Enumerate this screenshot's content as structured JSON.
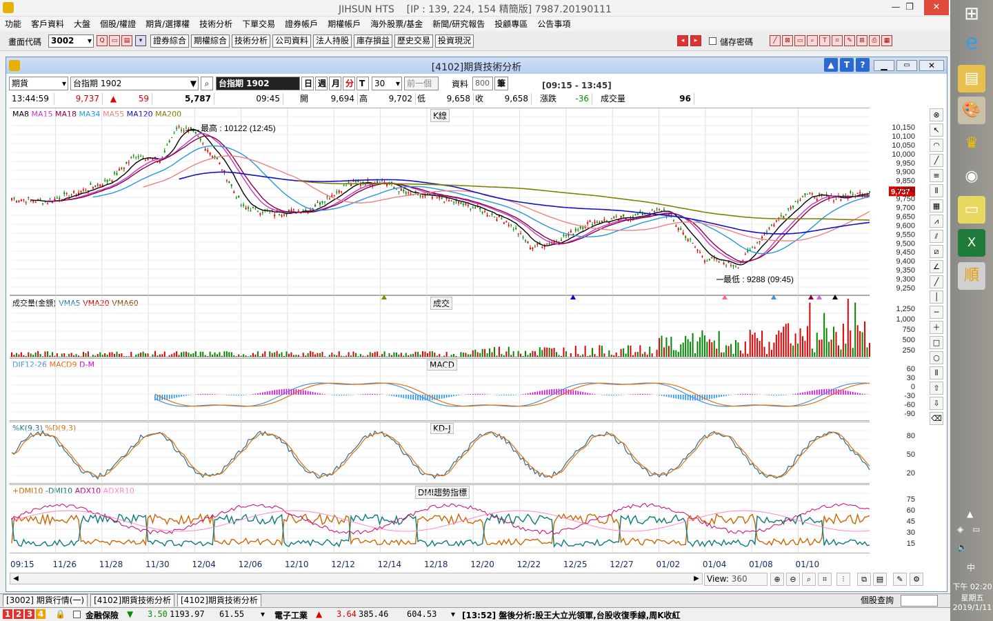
{
  "window": {
    "title": "JIHSUN HTS",
    "ip": "[IP : 139, 224, 154 精簡版] 7987.20190111"
  },
  "menu": [
    "功能",
    "客戶資料",
    "大盤",
    "個股/權證",
    "期貨/選擇權",
    "技術分析",
    "下單交易",
    "證券帳戶",
    "期權帳戶",
    "海外股票/基金",
    "新聞/研究報告",
    "投顧專區",
    "公告事項"
  ],
  "toolbar": {
    "code_label": "畫面代碼",
    "code_value": "3002",
    "buttons": [
      "證券綜合",
      "期權綜合",
      "技術分析",
      "公司資料",
      "法人持股",
      "庫存損益",
      "歷史交易",
      "投資現況"
    ],
    "save_pwd": "儲存密碼"
  },
  "child": {
    "title": "[4102]期貨技術分析"
  },
  "controls": {
    "type": "期貨",
    "product": "台指期 1902",
    "product_display": "台指期 1902",
    "periods": [
      "日",
      "週",
      "月",
      "分",
      "T"
    ],
    "interval": "30",
    "prev": "前一個",
    "data_label": "資料",
    "data_count": "800",
    "unit": "筆",
    "session": "[09:15 - 13:45]"
  },
  "quote": {
    "time": "13:44:59",
    "price": "9,737",
    "change": "59",
    "volume": "5,787",
    "bar_time": "09:45",
    "open_label": "開",
    "open": "9,694",
    "high_label": "高",
    "high": "9,702",
    "low_label": "低",
    "low": "9,658",
    "close_label": "收",
    "close": "9,658",
    "chg_label": "漲跌",
    "chg": "-36",
    "vol_label": "成交量",
    "vol": "96"
  },
  "panels": {
    "k": {
      "title": "K線",
      "legend": [
        {
          "t": "MA8",
          "c": "#000000"
        },
        {
          "t": "MA15",
          "c": "#cc33cc"
        },
        {
          "t": "MA18",
          "c": "#880044"
        },
        {
          "t": "MA34",
          "c": "#2299dd"
        },
        {
          "t": "MA55",
          "c": "#f08080"
        },
        {
          "t": "MA120",
          "c": "#1010cc"
        },
        {
          "t": "MA200",
          "c": "#808000"
        }
      ],
      "yticks": [
        "10,150",
        "10,100",
        "10,050",
        "10,000",
        "9,950",
        "9,900",
        "9,850",
        "9,800",
        "9,750",
        "9,700",
        "9,650",
        "9,600",
        "9,550",
        "9,500",
        "9,450",
        "9,400",
        "9,350",
        "9,300",
        "9,250"
      ],
      "high_note": "最高 : 10122 (12:45)",
      "low_note": "最低 : 9288 (09:45)",
      "last": "9,737"
    },
    "vol": {
      "title": "成交",
      "legend": [
        {
          "t": "成交量(金額)",
          "c": "#000000"
        },
        {
          "t": "VMA5",
          "c": "#1f77b4"
        },
        {
          "t": "VMA20",
          "c": "#cc0000"
        },
        {
          "t": "VMA60",
          "c": "#884400"
        }
      ],
      "yticks": [
        "1,250",
        "1,000",
        "750",
        "500",
        "250"
      ]
    },
    "macd": {
      "title": "MACD",
      "legend": [
        {
          "t": "DIF12-26",
          "c": "#4a90d9"
        },
        {
          "t": "MACD9",
          "c": "#e07010"
        },
        {
          "t": "D-M",
          "c": "#dd00dd"
        }
      ],
      "yticks": [
        "60",
        "30",
        "0",
        "-30",
        "-60",
        "-90"
      ]
    },
    "kd": {
      "title": "KD-J",
      "legend": [
        {
          "t": "%K(9,3)",
          "c": "#2a6e8a"
        },
        {
          "t": "%D(9,3)",
          "c": "#e07010"
        }
      ],
      "yticks": [
        "80",
        "50",
        "20"
      ]
    },
    "dmi": {
      "title": "DMI趨勢指標",
      "legend": [
        {
          "t": "+DMI10",
          "c": "#cc6600"
        },
        {
          "t": "-DMI10",
          "c": "#0a7a7a"
        },
        {
          "t": "ADX10",
          "c": "#cc0077"
        },
        {
          "t": "ADXR10",
          "c": "#ff88cc"
        }
      ],
      "yticks": [
        "75",
        "60",
        "45",
        "30",
        "15"
      ]
    }
  },
  "xaxis": [
    "09:15",
    "11/26",
    "11/28",
    "11/30",
    "12/04",
    "12/06",
    "12/10",
    "12/12",
    "12/14",
    "12/18",
    "12/20",
    "12/22",
    "12/25",
    "12/27",
    "01/02",
    "01/04",
    "01/08",
    "01/10"
  ],
  "view": {
    "label": "View:",
    "value": "360"
  },
  "tabs": [
    "[3002] 期貨行情(一)",
    "[4102]期貨技術分析",
    "[4102]期貨技術分析"
  ],
  "statusbar": {
    "nums": [
      "1",
      "2",
      "3",
      "4"
    ],
    "ind1": "金融保險",
    "ind1_chg": "3.50",
    "ind1_val": "1193.97",
    "ind1_vol": "61.55",
    "ind2": "電子工業",
    "ind2_chg": "3.64",
    "ind2_val": "385.46",
    "ind2_vol": "604.53",
    "news": "[13:52] 盤後分析:股王大立光領軍,台股收復季線,周K收紅",
    "quick": "個股查詢"
  },
  "taskbar": {
    "time": "下午 02:20",
    "weekday": "星期五",
    "date": "2019/1/11",
    "ime": "中"
  }
}
